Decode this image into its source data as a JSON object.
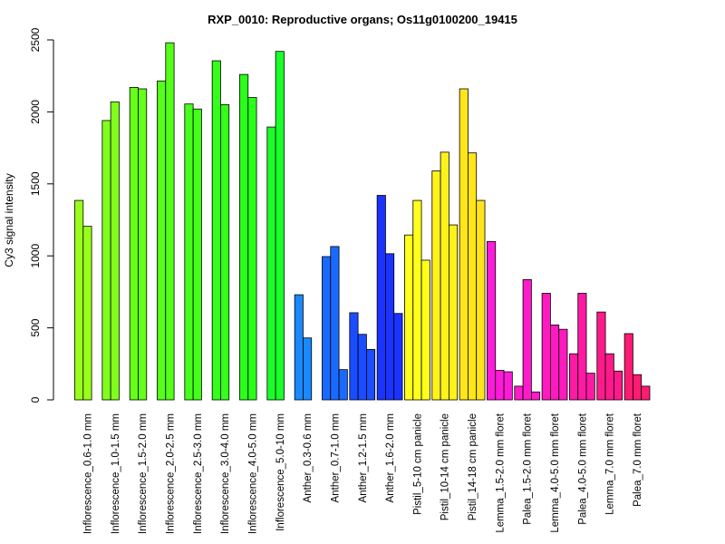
{
  "chart_data": {
    "type": "bar",
    "title": "RXP_0010: Reproductive organs; Os11g0100200_19415",
    "xlabel": "",
    "ylabel": "Cy3 signal intensity",
    "ylim": [
      0,
      2500
    ],
    "yticks": [
      0,
      500,
      1000,
      1500,
      2000,
      2500
    ],
    "grid": false,
    "legend": "none",
    "groups": [
      {
        "label": "Inflorescence_0.6-1.0 mm",
        "color": "#99ff1a",
        "values": [
          1385,
          1205
        ]
      },
      {
        "label": "Inflorescence_1.0-1.5 mm",
        "color": "#80ff1a",
        "values": [
          1940,
          2070
        ]
      },
      {
        "label": "Inflorescence_1.5-2.0 mm",
        "color": "#66ff1a",
        "values": [
          2170,
          2160
        ]
      },
      {
        "label": "Inflorescence_2.0-2.5 mm",
        "color": "#55ff1a",
        "values": [
          2215,
          2480
        ]
      },
      {
        "label": "Inflorescence_2.5-3.0 mm",
        "color": "#44ff1a",
        "values": [
          2055,
          2020
        ]
      },
      {
        "label": "Inflorescence_3.0-4.0 mm",
        "color": "#33ff1a",
        "values": [
          2355,
          2050
        ]
      },
      {
        "label": "Inflorescence_4.0-5.0 mm",
        "color": "#2aff1a",
        "values": [
          2260,
          2100
        ]
      },
      {
        "label": "Inflorescence_5.0-10 mm",
        "color": "#1aff2a",
        "values": [
          1895,
          2420
        ]
      },
      {
        "label": "Anther_0.3-0.6 mm",
        "color": "#1a88ff",
        "values": [
          730,
          430
        ]
      },
      {
        "label": "Anther_0.7-1.0 mm",
        "color": "#1a6aff",
        "values": [
          995,
          1065,
          210
        ]
      },
      {
        "label": "Anther_1.2-1.5 mm",
        "color": "#1a4dff",
        "values": [
          605,
          455,
          350
        ]
      },
      {
        "label": "Anther_1.6-2.0 mm",
        "color": "#1a33ff",
        "values": [
          1420,
          1015,
          600
        ]
      },
      {
        "label": "Pistil_5-10 cm panicle",
        "color": "#ffff1a",
        "values": [
          1145,
          1385,
          970
        ]
      },
      {
        "label": "Pistil_10-14 cm panicle",
        "color": "#fff21a",
        "values": [
          1590,
          1720,
          1215
        ]
      },
      {
        "label": "Pistil_14-18 cm panicle",
        "color": "#ffe51a",
        "values": [
          2160,
          1715,
          1385
        ]
      },
      {
        "label": "Lemma_1.5-2.0 mm floret",
        "color": "#ff1ad9",
        "values": [
          1100,
          205,
          195
        ]
      },
      {
        "label": "Palea_1.5-2.0 mm floret",
        "color": "#ff1acc",
        "values": [
          95,
          835,
          55
        ]
      },
      {
        "label": "Lemma_4.0-5.0 mm floret",
        "color": "#ff1abf",
        "values": [
          740,
          520,
          490
        ]
      },
      {
        "label": "Palea_4.0-5.0 mm floret",
        "color": "#ff1aa6",
        "values": [
          320,
          740,
          185
        ]
      },
      {
        "label": "Lemma_7.0 mm floret",
        "color": "#ff1a8c",
        "values": [
          610,
          320,
          200
        ]
      },
      {
        "label": "Palea_7.0 mm floret",
        "color": "#ff1a73",
        "values": [
          460,
          175,
          95
        ]
      }
    ]
  }
}
